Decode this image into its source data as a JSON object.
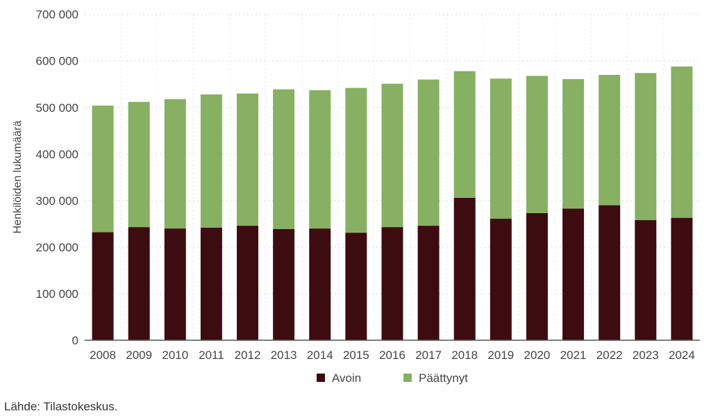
{
  "chart_data": {
    "type": "bar",
    "stacked": true,
    "title": "",
    "xlabel": "",
    "ylabel": "Henkilöiden lukumäärä",
    "ylim": [
      0,
      700000
    ],
    "yticks": [
      0,
      100000,
      200000,
      300000,
      400000,
      500000,
      600000,
      700000
    ],
    "ytick_labels": [
      "0",
      "100 000",
      "200 000",
      "300 000",
      "400 000",
      "500 000",
      "600 000",
      "700 000"
    ],
    "grid": true,
    "legend_position": "bottom",
    "categories": [
      "2008",
      "2009",
      "2010",
      "2011",
      "2012",
      "2013",
      "2014",
      "2015",
      "2016",
      "2017",
      "2018",
      "2019",
      "2020",
      "2021",
      "2022",
      "2023",
      "2024"
    ],
    "series": [
      {
        "name": "Avoin",
        "color": "#3d0c11",
        "values": [
          232000,
          243000,
          240000,
          242000,
          246000,
          239000,
          240000,
          231000,
          243000,
          246000,
          306000,
          261000,
          273000,
          283000,
          290000,
          258000,
          263000
        ]
      },
      {
        "name": "Päättynyt",
        "color": "#87b063",
        "values": [
          272000,
          269000,
          278000,
          286000,
          284000,
          300000,
          297000,
          311000,
          308000,
          314000,
          272000,
          301000,
          295000,
          278000,
          280000,
          316000,
          325000
        ]
      }
    ]
  },
  "source": "Lähde: Tilastokeskus."
}
